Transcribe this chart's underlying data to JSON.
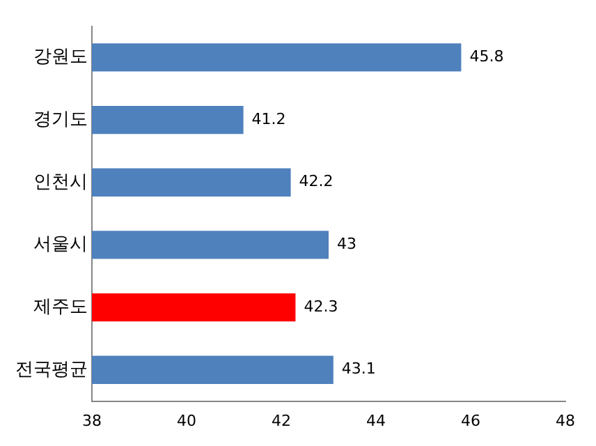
{
  "chart_data": {
    "type": "bar",
    "orientation": "horizontal",
    "categories": [
      "강원도",
      "경기도",
      "인천시",
      "서울시",
      "제주도",
      "전국평균"
    ],
    "values": [
      45.8,
      41.2,
      42.2,
      43,
      42.3,
      43.1
    ],
    "colors": [
      "#4f81bd",
      "#4f81bd",
      "#4f81bd",
      "#4f81bd",
      "#ff0000",
      "#4f81bd"
    ],
    "xlim": [
      38,
      48
    ],
    "xticks": [
      38,
      40,
      42,
      44,
      46,
      48
    ],
    "data_labels": true
  }
}
